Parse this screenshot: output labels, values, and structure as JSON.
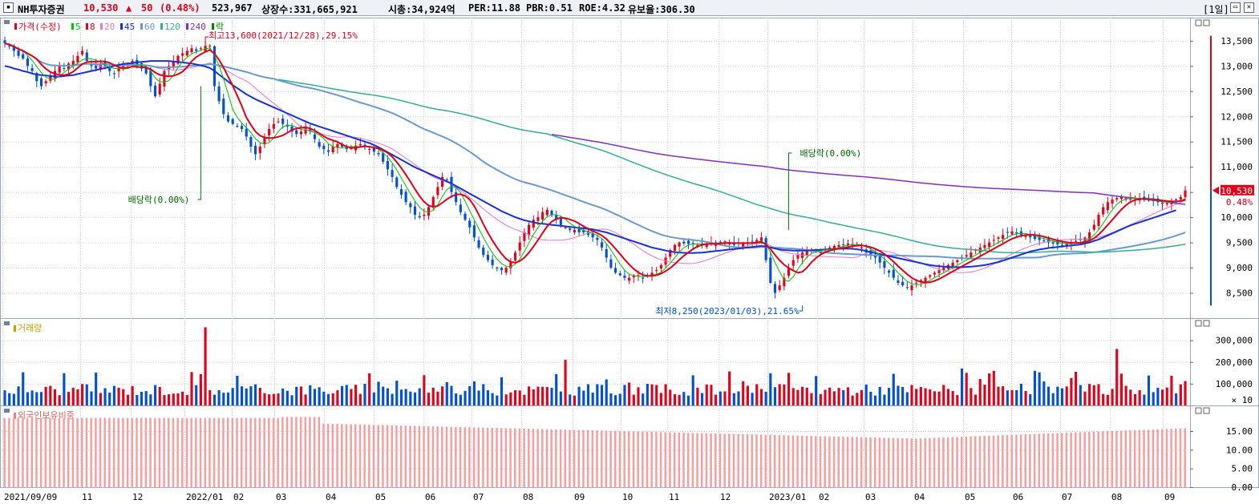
{
  "header": {
    "name": "NH투자증권",
    "price": "10,530",
    "arrow": "▲",
    "change": "50",
    "change_pct": "(0.48%)",
    "volume": "523,967",
    "shares": "상장수:331,665,921",
    "mcap": "시총:34,924억",
    "per": "PER:11.88",
    "pbr": "PBR:0.51",
    "roe": "ROE:4.32",
    "float_ratio": "유보율:306.30",
    "period": "[1일]",
    "up_color": "#e0001a",
    "down_color": "#0050d0"
  },
  "chart_data": [
    {
      "type": "line",
      "legend": [
        {
          "name": "가격(수정)",
          "color": "#e0001a"
        },
        {
          "name": "5",
          "color": "#00c000"
        },
        {
          "name": "8",
          "color": "#e0001a"
        },
        {
          "name": "20",
          "color": "#e078d0"
        },
        {
          "name": "45",
          "color": "#1830d8"
        },
        {
          "name": "60",
          "color": "#6a9ad0"
        },
        {
          "name": "120",
          "color": "#30b090"
        },
        {
          "name": "240",
          "color": "#8030c8"
        },
        {
          "name": "락",
          "color": "#008000"
        }
      ],
      "y_ticks": [
        "13,500",
        "13,000",
        "12,500",
        "12,000",
        "11,500",
        "11,000",
        "10,500",
        "10,000",
        "9,500",
        "9,000",
        "8,500"
      ],
      "ylim": [
        8000,
        13800
      ],
      "current_price": "10,530",
      "current_pct": "0.48%",
      "x_ticks": [
        "2021/09/09",
        "11",
        "12",
        "2022/01",
        "02",
        "03",
        "04",
        "05",
        "06",
        "07",
        "08",
        "09",
        "10",
        "11",
        "12",
        "2023/01",
        "02",
        "03",
        "04",
        "05",
        "06",
        "07",
        "08",
        "09"
      ],
      "annotations": {
        "high": "최고13,600(2021/12/28),29.15%",
        "low": "최저8,250(2023/01/03),21.65%",
        "div1": "배당락(0.00%)",
        "div2": "배당락(0.00%)"
      },
      "close": [
        13450,
        13400,
        13300,
        13200,
        13150,
        13000,
        12900,
        12700,
        12600,
        12700,
        12800,
        12900,
        13000,
        12950,
        13050,
        13100,
        13200,
        13300,
        13100,
        13000,
        12950,
        13050,
        13000,
        12900,
        12850,
        12950,
        13000,
        13050,
        13100,
        13000,
        12950,
        12850,
        12600,
        12400,
        12650,
        12900,
        13000,
        13100,
        13200,
        13250,
        13300,
        13350,
        13300,
        13350,
        13400,
        13400,
        12600,
        12300,
        12050,
        11900,
        11850,
        11800,
        11750,
        11600,
        11400,
        11250,
        11400,
        11600,
        11750,
        11850,
        11900,
        11850,
        11800,
        11700,
        11650,
        11700,
        11800,
        11700,
        11550,
        11400,
        11350,
        11300,
        11400,
        11450,
        11400,
        11350,
        11380,
        11420,
        11450,
        11400,
        11350,
        11300,
        11250,
        11100,
        10950,
        10800,
        10600,
        10450,
        10300,
        10200,
        10050,
        10000,
        10050,
        10200,
        10400,
        10600,
        10800,
        10750,
        10500,
        10300,
        10100,
        9950,
        9800,
        9600,
        9400,
        9250,
        9150,
        9050,
        9000,
        8950,
        9000,
        9100,
        9300,
        9500,
        9700,
        9850,
        9950,
        10000,
        10100,
        10150,
        10050,
        9950,
        9850,
        9800,
        9750,
        9750,
        9700,
        9700,
        9650,
        9600,
        9550,
        9400,
        9200,
        9000,
        8900,
        8850,
        8800,
        8800,
        8850,
        8850,
        8800,
        8850,
        8900,
        8950,
        9050,
        9200,
        9350,
        9450,
        9500,
        9480,
        9470,
        9460,
        9450,
        9470,
        9480,
        9490,
        9500,
        9510,
        9520,
        9480,
        9450,
        9470,
        9480,
        9500,
        9520,
        9550,
        9600,
        9150,
        8700,
        8500,
        8650,
        8800,
        9000,
        9150,
        9250,
        9300,
        9350,
        9360,
        9330,
        9340,
        9370,
        9400,
        9430,
        9450,
        9460,
        9480,
        9470,
        9440,
        9400,
        9300,
        9250,
        9200,
        9100,
        9000,
        8900,
        8800,
        8700,
        8650,
        8600,
        8650,
        8700,
        8750,
        8800,
        8850,
        8900,
        8950,
        9000,
        9050,
        9100,
        9150,
        9200,
        9250,
        9300,
        9350,
        9400,
        9450,
        9500,
        9550,
        9600,
        9650,
        9700,
        9720,
        9680,
        9650,
        9630,
        9600,
        9570,
        9550,
        9530,
        9500,
        9480,
        9460,
        9450,
        9480,
        9500,
        9530,
        9550,
        9600,
        9700,
        9850,
        10050,
        10200,
        10300,
        10350,
        10380,
        10400,
        10380,
        10370,
        10360,
        10350,
        10340,
        10330,
        10320,
        10300,
        10290,
        10280,
        10300,
        10350,
        10400,
        10530
      ],
      "ma45": [
        13000,
        12980,
        12950,
        12930,
        12900,
        12880,
        12850,
        12830,
        12820,
        12810,
        12800,
        12790,
        12790,
        12800,
        12810,
        12820,
        12840,
        12860,
        12880,
        12900,
        12920,
        12940,
        12960,
        12980,
        13000,
        13020,
        13040,
        13050,
        13060,
        13070,
        13080,
        13090,
        13100,
        13100,
        13100,
        13100,
        13100,
        13090,
        13080,
        13070,
        13060,
        13050,
        13030,
        13010,
        12990,
        12960,
        12900,
        12830,
        12760,
        12690,
        12620,
        12560,
        12500,
        12440,
        12390,
        12340,
        12300,
        12260,
        12220,
        12180,
        12140,
        12100,
        12060,
        12020,
        11980,
        11940,
        11900,
        11860,
        11830,
        11800,
        11770,
        11740,
        11710,
        11680,
        11650,
        11620,
        11590,
        11560,
        11530,
        11500,
        11470,
        11430,
        11390,
        11340,
        11290,
        11240,
        11190,
        11140,
        11090,
        11040,
        10990,
        10950,
        10910,
        10870,
        10830,
        10790,
        10750,
        10710,
        10670,
        10620,
        10570,
        10520,
        10470,
        10420,
        10370,
        10320,
        10270,
        10220,
        10170,
        10120,
        10080,
        10040,
        10000,
        9970,
        9940,
        9920,
        9900,
        9880,
        9870,
        9860,
        9850,
        9840,
        9830,
        9820,
        9810,
        9800,
        9790,
        9780,
        9770,
        9760,
        9740,
        9720,
        9700,
        9670,
        9640,
        9610,
        9580,
        9550,
        9520,
        9490,
        9460,
        9430,
        9400,
        9380,
        9360,
        9340,
        9320,
        9310,
        9300,
        9295,
        9290,
        9290,
        9295,
        9300,
        9310,
        9320,
        9330,
        9340,
        9350,
        9360,
        9370,
        9380,
        9390,
        9400,
        9410,
        9420,
        9430,
        9420,
        9400,
        9380,
        9360,
        9350,
        9345,
        9340,
        9340,
        9340,
        9340,
        9345,
        9350,
        9355,
        9360,
        9365,
        9370,
        9375,
        9380,
        9380,
        9375,
        9365,
        9350,
        9330,
        9310,
        9290,
        9270,
        9250,
        9230,
        9210,
        9190,
        9170,
        9150,
        9130,
        9110,
        9090,
        9070,
        9050,
        9040,
        9030,
        9020,
        9015,
        9010,
        9010,
        9010,
        9015,
        9020,
        9030,
        9040,
        9050,
        9070,
        9090,
        9110,
        9140,
        9170,
        9200,
        9230,
        9260,
        9290,
        9320,
        9340,
        9360,
        9375,
        9390,
        9400,
        9410,
        9420,
        9430,
        9440,
        9450,
        9460,
        9480,
        9500,
        9530,
        9560,
        9600,
        9640,
        9680,
        9720,
        9760,
        9800,
        9840,
        9870,
        9900,
        9930,
        9960,
        9990,
        10020,
        10050,
        10080,
        10110,
        10140
      ]
    },
    {
      "type": "bar",
      "title": "거래량",
      "y_ticks": [
        "300,000",
        "200,000",
        "100,000"
      ],
      "unit": "× 10",
      "ylim": [
        0,
        380000
      ]
    },
    {
      "type": "bar",
      "title": "외국인보유비중",
      "y_ticks": [
        "15.00",
        "10.00",
        "5.00",
        "0.00"
      ],
      "ylim": [
        0,
        21
      ],
      "values_start": 18.5,
      "values_end": 15.8
    }
  ]
}
